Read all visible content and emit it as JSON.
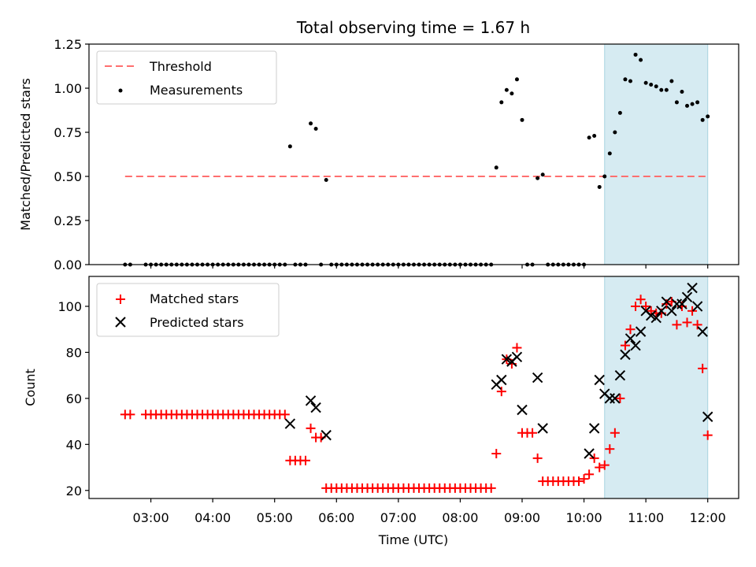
{
  "chart_data": [
    {
      "type": "scatter",
      "title": "Total observing time = 1.67 h",
      "xlabel": "",
      "ylabel": "Matched/Predicted stars",
      "ylim": [
        0,
        1.25
      ],
      "yticks": [
        "0.00",
        "0.25",
        "0.50",
        "0.75",
        "1.00",
        "1.25"
      ],
      "legend_position": "upper-left",
      "shaded_interval": {
        "start": "10:20",
        "end": "12:00",
        "color": "#add8e6"
      },
      "threshold": {
        "name": "Threshold",
        "value": 0.5,
        "start": "02:35",
        "end": "12:00",
        "color": "#ff6f6f"
      },
      "series": [
        {
          "name": "Measurements",
          "color": "#000000",
          "marker": "dot",
          "points": [
            [
              "02:35",
              0
            ],
            [
              "02:40",
              0
            ],
            [
              "02:55",
              0
            ],
            [
              "03:00",
              0
            ],
            [
              "03:05",
              0
            ],
            [
              "03:10",
              0
            ],
            [
              "03:15",
              0
            ],
            [
              "03:20",
              0
            ],
            [
              "03:25",
              0
            ],
            [
              "03:30",
              0
            ],
            [
              "03:35",
              0
            ],
            [
              "03:40",
              0
            ],
            [
              "03:45",
              0
            ],
            [
              "03:50",
              0
            ],
            [
              "03:55",
              0
            ],
            [
              "04:00",
              0
            ],
            [
              "04:05",
              0
            ],
            [
              "04:10",
              0
            ],
            [
              "04:15",
              0
            ],
            [
              "04:20",
              0
            ],
            [
              "04:25",
              0
            ],
            [
              "04:30",
              0
            ],
            [
              "04:35",
              0
            ],
            [
              "04:40",
              0
            ],
            [
              "04:45",
              0
            ],
            [
              "04:50",
              0
            ],
            [
              "04:55",
              0
            ],
            [
              "05:00",
              0
            ],
            [
              "05:05",
              0
            ],
            [
              "05:10",
              0
            ],
            [
              "05:15",
              0.67
            ],
            [
              "05:20",
              0
            ],
            [
              "05:25",
              0
            ],
            [
              "05:30",
              0
            ],
            [
              "05:35",
              0.8
            ],
            [
              "05:40",
              0.77
            ],
            [
              "05:45",
              0
            ],
            [
              "05:50",
              0.48
            ],
            [
              "05:55",
              0
            ],
            [
              "06:00",
              0
            ],
            [
              "06:05",
              0
            ],
            [
              "06:10",
              0
            ],
            [
              "06:15",
              0
            ],
            [
              "06:20",
              0
            ],
            [
              "06:25",
              0
            ],
            [
              "06:30",
              0
            ],
            [
              "06:35",
              0
            ],
            [
              "06:40",
              0
            ],
            [
              "06:45",
              0
            ],
            [
              "06:50",
              0
            ],
            [
              "06:55",
              0
            ],
            [
              "07:00",
              0
            ],
            [
              "07:05",
              0
            ],
            [
              "07:10",
              0
            ],
            [
              "07:15",
              0
            ],
            [
              "07:20",
              0
            ],
            [
              "07:25",
              0
            ],
            [
              "07:30",
              0
            ],
            [
              "07:35",
              0
            ],
            [
              "07:40",
              0
            ],
            [
              "07:45",
              0
            ],
            [
              "07:50",
              0
            ],
            [
              "07:55",
              0
            ],
            [
              "08:00",
              0
            ],
            [
              "08:05",
              0
            ],
            [
              "08:10",
              0
            ],
            [
              "08:15",
              0
            ],
            [
              "08:20",
              0
            ],
            [
              "08:25",
              0
            ],
            [
              "08:30",
              0
            ],
            [
              "08:35",
              0.55
            ],
            [
              "08:40",
              0.92
            ],
            [
              "08:45",
              0.99
            ],
            [
              "08:50",
              0.97
            ],
            [
              "08:55",
              1.05
            ],
            [
              "09:00",
              0.82
            ],
            [
              "09:05",
              0
            ],
            [
              "09:10",
              0
            ],
            [
              "09:15",
              0.49
            ],
            [
              "09:20",
              0.51
            ],
            [
              "09:25",
              0
            ],
            [
              "09:30",
              0
            ],
            [
              "09:35",
              0
            ],
            [
              "09:40",
              0
            ],
            [
              "09:45",
              0
            ],
            [
              "09:50",
              0
            ],
            [
              "09:55",
              0
            ],
            [
              "10:00",
              0
            ],
            [
              "10:05",
              0.72
            ],
            [
              "10:10",
              0.73
            ],
            [
              "10:15",
              0.44
            ],
            [
              "10:20",
              0.5
            ],
            [
              "10:25",
              0.63
            ],
            [
              "10:30",
              0.75
            ],
            [
              "10:35",
              0.86
            ],
            [
              "10:40",
              1.05
            ],
            [
              "10:45",
              1.04
            ],
            [
              "10:50",
              1.19
            ],
            [
              "10:55",
              1.16
            ],
            [
              "11:00",
              1.03
            ],
            [
              "11:05",
              1.02
            ],
            [
              "11:10",
              1.01
            ],
            [
              "11:15",
              0.99
            ],
            [
              "11:20",
              0.99
            ],
            [
              "11:25",
              1.04
            ],
            [
              "11:30",
              0.92
            ],
            [
              "11:35",
              0.98
            ],
            [
              "11:40",
              0.9
            ],
            [
              "11:45",
              0.91
            ],
            [
              "11:50",
              0.92
            ],
            [
              "11:55",
              0.82
            ],
            [
              "12:00",
              0.84
            ]
          ]
        }
      ]
    },
    {
      "type": "scatter",
      "title": "",
      "xlabel": "Time (UTC)",
      "ylabel": "Count",
      "ylim": [
        16.5,
        113
      ],
      "xlim": [
        "02:00",
        "12:30"
      ],
      "xticks": [
        "03:00",
        "04:00",
        "05:00",
        "06:00",
        "07:00",
        "08:00",
        "09:00",
        "10:00",
        "11:00",
        "12:00"
      ],
      "yticks": [
        "20",
        "40",
        "60",
        "80",
        "100"
      ],
      "legend_position": "upper-left",
      "shaded_interval": {
        "start": "10:20",
        "end": "12:00",
        "color": "#add8e6"
      },
      "series": [
        {
          "name": "Matched stars",
          "color": "#ff0000",
          "marker": "plus",
          "points": [
            [
              "02:35",
              53
            ],
            [
              "02:40",
              53
            ],
            [
              "02:55",
              53
            ],
            [
              "03:00",
              53
            ],
            [
              "03:05",
              53
            ],
            [
              "03:10",
              53
            ],
            [
              "03:15",
              53
            ],
            [
              "03:20",
              53
            ],
            [
              "03:25",
              53
            ],
            [
              "03:30",
              53
            ],
            [
              "03:35",
              53
            ],
            [
              "03:40",
              53
            ],
            [
              "03:45",
              53
            ],
            [
              "03:50",
              53
            ],
            [
              "03:55",
              53
            ],
            [
              "04:00",
              53
            ],
            [
              "04:05",
              53
            ],
            [
              "04:10",
              53
            ],
            [
              "04:15",
              53
            ],
            [
              "04:20",
              53
            ],
            [
              "04:25",
              53
            ],
            [
              "04:30",
              53
            ],
            [
              "04:35",
              53
            ],
            [
              "04:40",
              53
            ],
            [
              "04:45",
              53
            ],
            [
              "04:50",
              53
            ],
            [
              "04:55",
              53
            ],
            [
              "05:00",
              53
            ],
            [
              "05:05",
              53
            ],
            [
              "05:10",
              53
            ],
            [
              "05:15",
              33
            ],
            [
              "05:20",
              33
            ],
            [
              "05:25",
              33
            ],
            [
              "05:30",
              33
            ],
            [
              "05:35",
              47
            ],
            [
              "05:40",
              43
            ],
            [
              "05:45",
              43
            ],
            [
              "05:50",
              21
            ],
            [
              "05:55",
              21
            ],
            [
              "06:00",
              21
            ],
            [
              "06:05",
              21
            ],
            [
              "06:10",
              21
            ],
            [
              "06:15",
              21
            ],
            [
              "06:20",
              21
            ],
            [
              "06:25",
              21
            ],
            [
              "06:30",
              21
            ],
            [
              "06:35",
              21
            ],
            [
              "06:40",
              21
            ],
            [
              "06:45",
              21
            ],
            [
              "06:50",
              21
            ],
            [
              "06:55",
              21
            ],
            [
              "07:00",
              21
            ],
            [
              "07:05",
              21
            ],
            [
              "07:10",
              21
            ],
            [
              "07:15",
              21
            ],
            [
              "07:20",
              21
            ],
            [
              "07:25",
              21
            ],
            [
              "07:30",
              21
            ],
            [
              "07:35",
              21
            ],
            [
              "07:40",
              21
            ],
            [
              "07:45",
              21
            ],
            [
              "07:50",
              21
            ],
            [
              "07:55",
              21
            ],
            [
              "08:00",
              21
            ],
            [
              "08:05",
              21
            ],
            [
              "08:10",
              21
            ],
            [
              "08:15",
              21
            ],
            [
              "08:20",
              21
            ],
            [
              "08:25",
              21
            ],
            [
              "08:30",
              21
            ],
            [
              "08:35",
              36
            ],
            [
              "08:40",
              63
            ],
            [
              "08:45",
              77
            ],
            [
              "08:50",
              75
            ],
            [
              "08:55",
              82
            ],
            [
              "09:00",
              45
            ],
            [
              "09:05",
              45
            ],
            [
              "09:10",
              45
            ],
            [
              "09:15",
              34
            ],
            [
              "09:20",
              24
            ],
            [
              "09:25",
              24
            ],
            [
              "09:30",
              24
            ],
            [
              "09:35",
              24
            ],
            [
              "09:40",
              24
            ],
            [
              "09:45",
              24
            ],
            [
              "09:50",
              24
            ],
            [
              "09:55",
              24
            ],
            [
              "10:00",
              25
            ],
            [
              "10:05",
              27
            ],
            [
              "10:10",
              34
            ],
            [
              "10:15",
              30
            ],
            [
              "10:20",
              31
            ],
            [
              "10:25",
              38
            ],
            [
              "10:30",
              45
            ],
            [
              "10:35",
              60
            ],
            [
              "10:40",
              83
            ],
            [
              "10:45",
              90
            ],
            [
              "10:50",
              100
            ],
            [
              "10:55",
              103
            ],
            [
              "11:00",
              100
            ],
            [
              "11:05",
              98
            ],
            [
              "11:10",
              97
            ],
            [
              "11:15",
              97
            ],
            [
              "11:20",
              101
            ],
            [
              "11:25",
              102
            ],
            [
              "11:30",
              92
            ],
            [
              "11:35",
              100
            ],
            [
              "11:40",
              93
            ],
            [
              "11:45",
              98
            ],
            [
              "11:50",
              92
            ],
            [
              "11:55",
              73
            ],
            [
              "12:00",
              44
            ]
          ]
        },
        {
          "name": "Predicted stars",
          "color": "#000000",
          "marker": "x",
          "points": [
            [
              "05:15",
              49
            ],
            [
              "05:35",
              59
            ],
            [
              "05:40",
              56
            ],
            [
              "05:50",
              44
            ],
            [
              "08:35",
              66
            ],
            [
              "08:40",
              68
            ],
            [
              "08:45",
              77
            ],
            [
              "08:50",
              76
            ],
            [
              "08:55",
              78
            ],
            [
              "09:00",
              55
            ],
            [
              "09:15",
              69
            ],
            [
              "09:20",
              47
            ],
            [
              "10:05",
              36
            ],
            [
              "10:10",
              47
            ],
            [
              "10:15",
              68
            ],
            [
              "10:20",
              62
            ],
            [
              "10:25",
              60
            ],
            [
              "10:30",
              60
            ],
            [
              "10:35",
              70
            ],
            [
              "10:40",
              79
            ],
            [
              "10:45",
              86
            ],
            [
              "10:50",
              83
            ],
            [
              "10:55",
              89
            ],
            [
              "11:00",
              98
            ],
            [
              "11:05",
              96
            ],
            [
              "11:10",
              95
            ],
            [
              "11:15",
              98
            ],
            [
              "11:20",
              102
            ],
            [
              "11:25",
              98
            ],
            [
              "11:30",
              101
            ],
            [
              "11:35",
              101
            ],
            [
              "11:40",
              104
            ],
            [
              "11:45",
              108
            ],
            [
              "11:50",
              100
            ],
            [
              "11:55",
              89
            ],
            [
              "12:00",
              52
            ]
          ]
        }
      ]
    }
  ]
}
